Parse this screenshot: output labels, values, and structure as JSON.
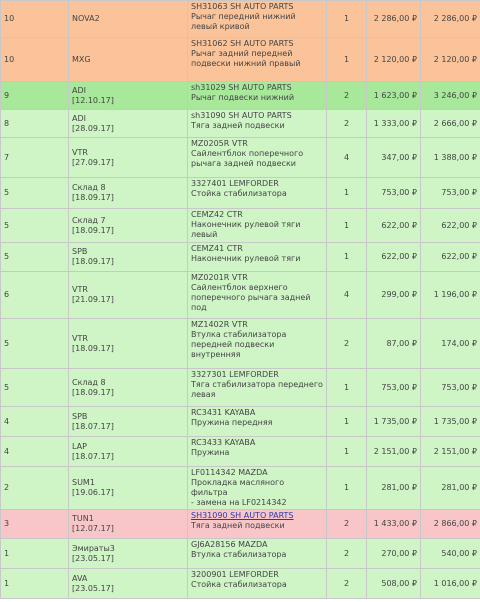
{
  "rows": [
    {
      "status": "10",
      "supplier": "NOVA2",
      "date": "",
      "code": "SH31063 SH AUTO PARTS",
      "desc": "Рычаг передний нижний левый кривой",
      "note": "",
      "qty": "1",
      "price": "2 286,00 ₽",
      "total": "2 286,00 ₽",
      "color": "orange",
      "h": 37,
      "link": false
    },
    {
      "status": "10",
      "supplier": "MXG",
      "date": "",
      "code": "SH31062 SH AUTO PARTS",
      "desc": "Рычаг задний передней подвески нижний правый",
      "note": "",
      "qty": "1",
      "price": "2 120,00 ₽",
      "total": "2 120,00 ₽",
      "color": "orange",
      "h": 44,
      "link": false
    },
    {
      "status": "9",
      "supplier": "ADI",
      "date": "[12.10.17]",
      "code": "sh31029 SH AUTO PARTS",
      "desc": "Рычаг подвески нижний",
      "note": "",
      "qty": "2",
      "price": "1 623,00 ₽",
      "total": "3 246,00 ₽",
      "color": "mgreen",
      "h": 28,
      "link": false
    },
    {
      "status": "8",
      "supplier": "ADI",
      "date": "[28.09.17]",
      "code": "sh31090 SH AUTO PARTS",
      "desc": "Тяга задней подвески",
      "note": "",
      "qty": "2",
      "price": "1 333,00 ₽",
      "total": "2 666,00 ₽",
      "color": "green",
      "h": 28,
      "link": false
    },
    {
      "status": "7",
      "supplier": "VTR",
      "date": "[27.09.17]",
      "code": "MZ0205R VTR",
      "desc": "Сайлентблок поперечного рычага задней подвески",
      "note": "",
      "qty": "4",
      "price": "347,00 ₽",
      "total": "1 388,00 ₽",
      "color": "green",
      "h": 40,
      "link": false
    },
    {
      "status": "5",
      "supplier": "Склад 8",
      "date": "[18.09.17]",
      "code": "3327401 LEMFORDER",
      "desc": "Стойка стабилизатора",
      "note": "",
      "qty": "1",
      "price": "753,00 ₽",
      "total": "753,00 ₽",
      "color": "green",
      "h": 31,
      "link": false
    },
    {
      "status": "5",
      "supplier": "Склад 7",
      "date": "[18.09.17]",
      "code": "CEMZ42 CTR",
      "desc": "Наконечник рулевой тяги левый",
      "note": "",
      "qty": "1",
      "price": "622,00 ₽",
      "total": "622,00 ₽",
      "color": "green",
      "h": 34,
      "link": false
    },
    {
      "status": "5",
      "supplier": "SPB",
      "date": "[18.09.17]",
      "code": "CEMZ41 CTR",
      "desc": "Наконечник рулевой тяги",
      "note": "",
      "qty": "1",
      "price": "622,00 ₽",
      "total": "622,00 ₽",
      "color": "green",
      "h": 29,
      "link": false
    },
    {
      "status": "6",
      "supplier": "VTR",
      "date": "[21.09.17]",
      "code": "MZ0201R VTR",
      "desc": "Сайлентблок верхнего поперечного рычага задней под",
      "note": "",
      "qty": "4",
      "price": "299,00 ₽",
      "total": "1 196,00 ₽",
      "color": "green",
      "h": 47,
      "link": false
    },
    {
      "status": "5",
      "supplier": "VTR",
      "date": "[18.09.17]",
      "code": "MZ1402R VTR",
      "desc": "Втулка стабилизатора передней подвески внутренняя",
      "note": "",
      "qty": "2",
      "price": "87,00 ₽",
      "total": "174,00 ₽",
      "color": "green",
      "h": 50,
      "link": false
    },
    {
      "status": "5",
      "supplier": "Склад 8",
      "date": "[18.09.17]",
      "code": "3327301 LEMFORDER",
      "desc": "Тяга стабилизатора переднего левая",
      "note": "",
      "qty": "1",
      "price": "753,00 ₽",
      "total": "753,00 ₽",
      "color": "green",
      "h": 38,
      "link": false
    },
    {
      "status": "4",
      "supplier": "SPB",
      "date": "[18.07.17]",
      "code": "RC3431 KAYABA",
      "desc": "Пружина передняя",
      "note": "",
      "qty": "1",
      "price": "1 735,00 ₽",
      "total": "1 735,00 ₽",
      "color": "green",
      "h": 30,
      "link": false
    },
    {
      "status": "4",
      "supplier": "LAP",
      "date": "[18.07.17]",
      "code": "RC3433 KAYABA",
      "desc": "Пружина",
      "note": "",
      "qty": "1",
      "price": "2 151,00 ₽",
      "total": "2 151,00 ₽",
      "color": "green",
      "h": 30,
      "link": false
    },
    {
      "status": "2",
      "supplier": "SUM1",
      "date": "[19.06.17]",
      "code": "LF0114342 MAZDA",
      "desc": "Прокладка масляного фильтра",
      "note": "- замена на LF0214342",
      "qty": "1",
      "price": "281,00 ₽",
      "total": "281,00 ₽",
      "color": "green",
      "h": 42,
      "link": false
    },
    {
      "status": "3",
      "supplier": "TUN1",
      "date": "[12.07.17]",
      "code": "SH31090 SH AUTO PARTS",
      "desc": "Тяга задней подвески",
      "note": "",
      "qty": "2",
      "price": "1 433,00 ₽",
      "total": "2 866,00 ₽",
      "color": "pink",
      "h": 29,
      "link": true
    },
    {
      "status": "1",
      "supplier": "Эмираты3",
      "date": "[23.05.17]",
      "code": "GJ6A28156 MAZDA",
      "desc": "Втулка стабилизатора",
      "note": "",
      "qty": "2",
      "price": "270,00 ₽",
      "total": "540,00 ₽",
      "color": "green",
      "h": 30,
      "link": false
    },
    {
      "status": "1",
      "supplier": "AVA",
      "date": "[23.05.17]",
      "code": "3200901 LEMFORDER",
      "desc": "Стойка стабилизатора",
      "note": "",
      "qty": "2",
      "price": "508,00 ₽",
      "total": "1 016,00 ₽",
      "color": "green",
      "h": 30,
      "link": false
    }
  ]
}
